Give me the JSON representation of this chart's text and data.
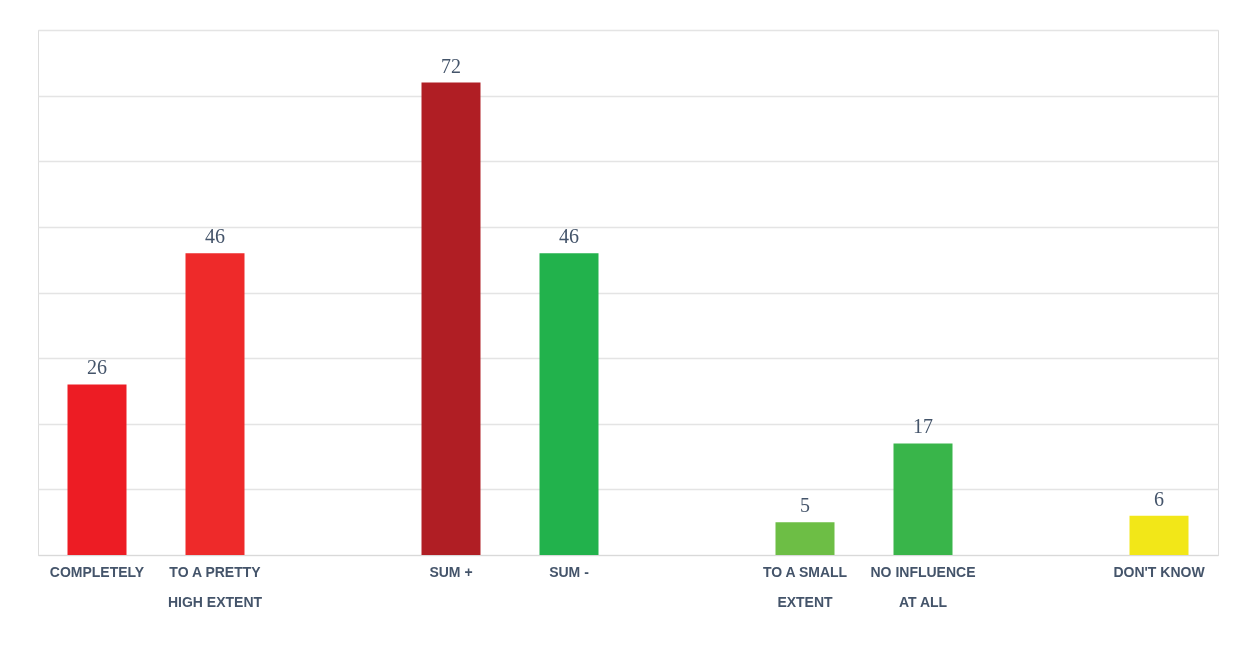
{
  "chart_data": {
    "type": "bar",
    "categories": [
      "COMPLETELY",
      "TO A PRETTY HIGH EXTENT",
      null,
      "SUM +",
      "SUM -",
      null,
      "TO A SMALL EXTENT",
      "NO INFLUENCE AT ALL",
      null,
      "DON'T KNOW"
    ],
    "values": [
      26,
      46,
      null,
      72,
      46,
      null,
      5,
      17,
      null,
      6
    ],
    "colors": [
      "#ed1c24",
      "#ee2a2a",
      "#ffffff",
      "#b01e24",
      "#22b24c",
      "#ffffff",
      "#6dbe45",
      "#39b54a",
      "#ffffff",
      "#f2e718"
    ],
    "ylim": [
      0,
      80
    ],
    "yticks": [
      {
        "value": 0,
        "label": null
      },
      {
        "value": 10,
        "label": null
      },
      {
        "value": 20,
        "label": null
      },
      {
        "value": 30,
        "label": null
      },
      {
        "value": 40,
        "label": null
      },
      {
        "value": 50,
        "label": null
      },
      {
        "value": 60,
        "label": null
      },
      {
        "value": 70,
        "label": null
      },
      {
        "value": 80,
        "label": null
      }
    ],
    "grid": "y",
    "data_labels": true,
    "tick_labels": "x"
  }
}
